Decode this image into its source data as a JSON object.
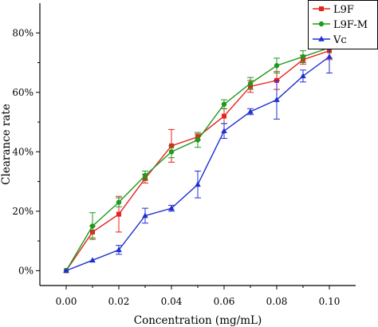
{
  "chart_data": {
    "type": "line",
    "xlabel": "Concentration (mg/mL)",
    "ylabel": "Clearance rate",
    "xlim": [
      -0.01,
      0.11
    ],
    "ylim": [
      -0.05,
      0.9
    ],
    "x_ticks": [
      0.0,
      0.02,
      0.04,
      0.06,
      0.08,
      0.1
    ],
    "x_tick_labels": [
      "0.00",
      "0.02",
      "0.04",
      "0.06",
      "0.08",
      "0.10"
    ],
    "y_ticks": [
      0.0,
      0.2,
      0.4,
      0.6,
      0.8
    ],
    "y_tick_labels": [
      "0%",
      "20%",
      "40%",
      "60%",
      "80%"
    ],
    "x": [
      0.0,
      0.01,
      0.02,
      0.03,
      0.04,
      0.05,
      0.06,
      0.07,
      0.08,
      0.09,
      0.1
    ],
    "series": [
      {
        "name": "L9F",
        "color": "#e8221c",
        "marker": "square",
        "values": [
          0.0,
          0.13,
          0.19,
          0.31,
          0.42,
          0.45,
          0.52,
          0.62,
          0.64,
          0.71,
          0.74
        ],
        "errors": [
          0.0,
          0.02,
          0.06,
          0.015,
          0.055,
          0.01,
          0.025,
          0.02,
          0.03,
          0.015,
          0.03
        ]
      },
      {
        "name": "L9F-M",
        "color": "#1f9a1f",
        "marker": "circle",
        "values": [
          0.0,
          0.15,
          0.23,
          0.32,
          0.4,
          0.44,
          0.56,
          0.63,
          0.69,
          0.72,
          0.75
        ],
        "errors": [
          0.0,
          0.045,
          0.015,
          0.015,
          0.02,
          0.025,
          0.015,
          0.02,
          0.025,
          0.02,
          0.035
        ]
      },
      {
        "name": "Vc",
        "color": "#1f2fd0",
        "marker": "triangle",
        "values": [
          0.0,
          0.035,
          0.07,
          0.185,
          0.21,
          0.29,
          0.47,
          0.535,
          0.575,
          0.655,
          0.72
        ],
        "errors": [
          0.0,
          0.0,
          0.015,
          0.025,
          0.01,
          0.045,
          0.025,
          0.01,
          0.065,
          0.02,
          0.055
        ]
      }
    ],
    "legend": "top-right",
    "grid": false
  }
}
